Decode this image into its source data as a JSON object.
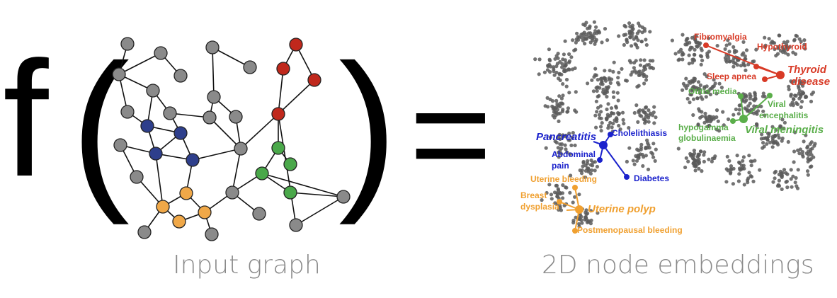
{
  "formula": {
    "func": "f",
    "open_paren": "(",
    "close_paren": ")",
    "equals": "="
  },
  "captions": {
    "input_graph": "Input graph",
    "embeddings": "2D node embeddings"
  },
  "embedding_labels": {
    "fibromyalgia": "Fibromyalgia",
    "hypothyroid": "Hypothyroid",
    "sleep_apnea": "Sleep apnea",
    "thyroid_disease_1": "Thyroid",
    "thyroid_disease_2": "disease",
    "otitis_media": "Otitis media",
    "viral_encephalitis_1": "Viral",
    "viral_encephalitis_2": "encephalitis",
    "hypogamma_1": "hypogamma",
    "hypogamma_2": "globulinaemia",
    "viral_meningitis": "Viral meningitis",
    "pancreatitis": "Pancreatitis",
    "cholelithiasis": "Cholelithiasis",
    "abdominal_pain_1": "Abdominal",
    "abdominal_pain_2": "pain",
    "diabetes": "Diabetes",
    "uterine_bleeding": "Uterine bleeding",
    "breast_dysplasia_1": "Breast",
    "breast_dysplasia_2": "dysplasia",
    "uterine_polyp": "Uterine polyp",
    "postmenopausal_bleeding": "Postmenopausal bleeding"
  },
  "colors": {
    "gray_node": "#8a8a8a",
    "blue_node": "#2e3f8c",
    "red_node": "#c0281c",
    "green_node": "#4aa84a",
    "orange_node": "#f0a848",
    "red_label": "#d83a26",
    "green_label": "#5aae4a",
    "blue_label": "#1b22cc",
    "orange_label": "#f0a030",
    "scatter_dot": "#5a5a5a"
  }
}
